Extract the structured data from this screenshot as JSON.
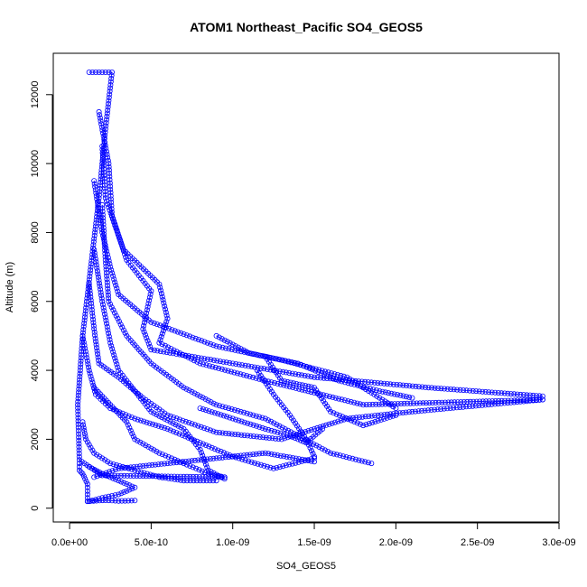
{
  "chart_data": {
    "type": "scatter",
    "title": "ATOM1 Northeast_Pacific SO4_GEOS5",
    "xlabel": "SO4_GEOS5",
    "ylabel": "Altitude (m)",
    "xlim": [
      -1e-10,
      3e-09
    ],
    "ylim": [
      -400,
      13200
    ],
    "x_ticks": [
      0,
      5e-10,
      1e-09,
      1.5e-09,
      2e-09,
      2.5e-09,
      3e-09
    ],
    "x_tick_labels": [
      "0.0e+00",
      "5.0e-10",
      "1.0e-09",
      "1.5e-09",
      "2.0e-09",
      "2.5e-09",
      "3.0e-09"
    ],
    "y_ticks": [
      0,
      2000,
      4000,
      6000,
      8000,
      10000,
      12000
    ],
    "y_tick_labels": [
      "0",
      "2000",
      "4000",
      "6000",
      "8000",
      "10000",
      "12000"
    ],
    "grid": false,
    "marker": "open-circle",
    "color": "#0000ff",
    "series": [
      {
        "points": [
          [
            1.2e-10,
            12650
          ],
          [
            2.6e-10,
            12650
          ],
          [
            2.2e-10,
            11000
          ],
          [
            1.8e-10,
            9000
          ],
          [
            1.3e-10,
            7000
          ],
          [
            8e-11,
            5000
          ],
          [
            5e-11,
            3000
          ],
          [
            6e-11,
            1400
          ],
          [
            2e-10,
            950
          ],
          [
            9.5e-10,
            900
          ]
        ]
      },
      {
        "points": [
          [
            1.8e-10,
            11500
          ],
          [
            2.4e-10,
            10000
          ],
          [
            2.6e-10,
            8500
          ],
          [
            3.5e-10,
            7200
          ],
          [
            5e-10,
            6300
          ],
          [
            4.5e-10,
            5200
          ],
          [
            5e-10,
            4600
          ],
          [
            1e-09,
            4200
          ],
          [
            1.5e-09,
            3800
          ],
          [
            2.2e-09,
            3500
          ],
          [
            2.9e-09,
            3250
          ]
        ]
      },
      {
        "points": [
          [
            2e-10,
            10500
          ],
          [
            2.2e-10,
            9000
          ],
          [
            3.3e-10,
            7500
          ],
          [
            5.5e-10,
            6500
          ],
          [
            6e-10,
            5500
          ],
          [
            5.5e-10,
            4800
          ],
          [
            8e-10,
            4200
          ],
          [
            1.2e-09,
            3700
          ],
          [
            1.8e-09,
            3000
          ],
          [
            2.9e-09,
            3150
          ]
        ]
      },
      {
        "points": [
          [
            1.5e-10,
            9500
          ],
          [
            2e-10,
            8000
          ],
          [
            2.5e-10,
            7000
          ],
          [
            3e-10,
            6200
          ],
          [
            5e-10,
            5400
          ],
          [
            9e-10,
            4700
          ],
          [
            1.3e-09,
            4300
          ],
          [
            1.7e-09,
            3800
          ],
          [
            2e-09,
            2900
          ]
        ]
      },
      {
        "points": [
          [
            2e-10,
            8800
          ],
          [
            2.2e-10,
            7200
          ],
          [
            2.4e-10,
            6000
          ],
          [
            3.5e-10,
            5000
          ],
          [
            5e-10,
            4200
          ],
          [
            7e-10,
            3500
          ],
          [
            9e-10,
            3000
          ],
          [
            1.2e-09,
            2600
          ],
          [
            1.6e-09,
            1600
          ],
          [
            1.85e-09,
            1300
          ]
        ]
      },
      {
        "points": [
          [
            1.5e-10,
            7500
          ],
          [
            2e-10,
            6000
          ],
          [
            2.5e-10,
            4800
          ],
          [
            3e-10,
            4000
          ],
          [
            4e-10,
            3400
          ],
          [
            5e-10,
            2800
          ],
          [
            7e-10,
            2300
          ],
          [
            8e-10,
            1700
          ],
          [
            8.5e-10,
            1100
          ],
          [
            9.5e-10,
            850
          ]
        ]
      },
      {
        "points": [
          [
            1.2e-10,
            6500
          ],
          [
            1.5e-10,
            5200
          ],
          [
            1.8e-10,
            4200
          ],
          [
            3e-10,
            3800
          ],
          [
            4.5e-10,
            3200
          ],
          [
            6e-10,
            2700
          ],
          [
            9e-10,
            2200
          ],
          [
            1.3e-09,
            2000
          ],
          [
            1.7e-09,
            2600
          ],
          [
            2.1e-09,
            2800
          ],
          [
            2.9e-09,
            3150
          ]
        ]
      },
      {
        "points": [
          [
            8e-11,
            5000
          ],
          [
            1.2e-10,
            4000
          ],
          [
            1.6e-10,
            3300
          ],
          [
            2.5e-10,
            2900
          ],
          [
            4e-10,
            2600
          ],
          [
            6e-10,
            2300
          ],
          [
            8e-10,
            1900
          ],
          [
            1e-09,
            1500
          ],
          [
            1.25e-09,
            1150
          ],
          [
            1.5e-09,
            1450
          ]
        ]
      },
      {
        "points": [
          [
            1.5e-10,
            3500
          ],
          [
            2.5e-10,
            3000
          ],
          [
            3.5e-10,
            2500
          ],
          [
            4e-10,
            2000
          ],
          [
            5.5e-10,
            1600
          ],
          [
            7e-10,
            1300
          ],
          [
            8.5e-10,
            1000
          ],
          [
            9.5e-10,
            900
          ]
        ]
      },
      {
        "points": [
          [
            8e-11,
            2500
          ],
          [
            1e-10,
            2000
          ],
          [
            1.5e-10,
            1600
          ],
          [
            2.5e-10,
            1300
          ],
          [
            4e-10,
            1100
          ],
          [
            5.5e-10,
            900
          ],
          [
            7e-10,
            800
          ],
          [
            9e-10,
            800
          ]
        ]
      },
      {
        "points": [
          [
            1.2e-10,
            1200
          ],
          [
            2e-10,
            1000
          ],
          [
            3e-10,
            800
          ],
          [
            4e-10,
            600
          ],
          [
            3e-10,
            400
          ],
          [
            2e-10,
            300
          ],
          [
            1.2e-10,
            200
          ]
        ]
      },
      {
        "points": [
          [
            1.5e-10,
            900
          ],
          [
            3e-10,
            1150
          ],
          [
            6e-10,
            1300
          ],
          [
            9e-10,
            1450
          ],
          [
            1.2e-09,
            1600
          ],
          [
            1.5e-09,
            1350
          ]
        ]
      },
      {
        "points": [
          [
            1.15e-09,
            4000
          ],
          [
            1.25e-09,
            3300
          ],
          [
            1.35e-09,
            2700
          ],
          [
            1.45e-09,
            2000
          ],
          [
            1.5e-09,
            1500
          ]
        ]
      },
      {
        "points": [
          [
            1.2e-09,
            4400
          ],
          [
            1.3e-09,
            3700
          ],
          [
            1.5e-09,
            3500
          ],
          [
            1.6e-09,
            2800
          ],
          [
            1.8e-09,
            2400
          ],
          [
            2e-09,
            2700
          ]
        ]
      },
      {
        "points": [
          [
            9e-10,
            5000
          ],
          [
            1.1e-09,
            4500
          ],
          [
            1.4e-09,
            4200
          ],
          [
            1.65e-09,
            3700
          ],
          [
            1.9e-09,
            3400
          ],
          [
            2.1e-09,
            3200
          ]
        ]
      },
      {
        "points": [
          [
            8e-10,
            2900
          ],
          [
            1e-09,
            2600
          ],
          [
            1.2e-09,
            2300
          ],
          [
            1.35e-09,
            2100
          ],
          [
            1.45e-09,
            1900
          ],
          [
            1.55e-09,
            2300
          ]
        ]
      },
      {
        "points": [
          [
            6e-11,
            1300
          ],
          [
            6e-11,
            1100
          ],
          [
            8e-11,
            1000
          ],
          [
            1.1e-10,
            700
          ],
          [
            1.1e-10,
            400
          ],
          [
            1.1e-10,
            200
          ]
        ]
      },
      {
        "points": [
          [
            1.1e-10,
            200
          ],
          [
            2.2e-10,
            230
          ],
          [
            3e-10,
            210
          ],
          [
            4e-10,
            220
          ]
        ]
      }
    ]
  }
}
